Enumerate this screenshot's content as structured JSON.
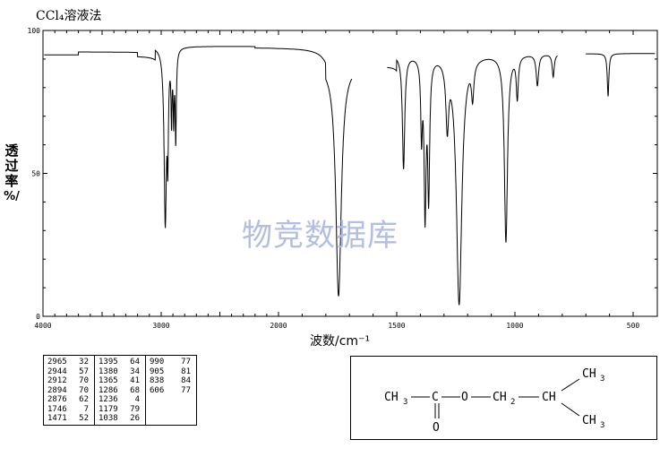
{
  "page": {
    "title": "CCl₄溶液法",
    "ylabel": "透\n过\n率\n%/",
    "xlabel": "波数/cm⁻¹",
    "watermark": "物竞数据库"
  },
  "chart_data": {
    "type": "line",
    "title": "CCl₄溶液法",
    "xlabel": "波数/cm⁻¹",
    "ylabel": "透过率%/",
    "xlim": [
      4000,
      400
    ],
    "ylim": [
      0,
      100
    ],
    "x_ticks": [
      4000,
      3000,
      2000,
      1500,
      1000,
      500
    ],
    "y_ticks": [
      0,
      50,
      100
    ],
    "peaks": [
      {
        "x": 2965,
        "y": 32
      },
      {
        "x": 2944,
        "y": 57
      },
      {
        "x": 2912,
        "y": 70
      },
      {
        "x": 2894,
        "y": 70
      },
      {
        "x": 2876,
        "y": 62
      },
      {
        "x": 1746,
        "y": 7
      },
      {
        "x": 1471,
        "y": 52
      },
      {
        "x": 1395,
        "y": 64
      },
      {
        "x": 1380,
        "y": 34
      },
      {
        "x": 1365,
        "y": 41
      },
      {
        "x": 1286,
        "y": 68
      },
      {
        "x": 1236,
        "y": 4
      },
      {
        "x": 1179,
        "y": 79
      },
      {
        "x": 1038,
        "y": 26
      },
      {
        "x": 990,
        "y": 77
      },
      {
        "x": 905,
        "y": 81
      },
      {
        "x": 838,
        "y": 84
      },
      {
        "x": 606,
        "y": 77
      }
    ]
  },
  "table": {
    "columns": [
      [
        [
          "2965",
          "32"
        ],
        [
          "2944",
          "57"
        ],
        [
          "2912",
          "70"
        ],
        [
          "2894",
          "70"
        ],
        [
          "2876",
          "62"
        ],
        [
          "1746",
          "7"
        ],
        [
          "1471",
          "52"
        ]
      ],
      [
        [
          "1395",
          "64"
        ],
        [
          "1380",
          "34"
        ],
        [
          "1365",
          "41"
        ],
        [
          "1286",
          "68"
        ],
        [
          "1236",
          "4"
        ],
        [
          "1179",
          "79"
        ],
        [
          "1038",
          "26"
        ]
      ],
      [
        [
          "990",
          "77"
        ],
        [
          "905",
          "81"
        ],
        [
          "838",
          "84"
        ],
        [
          "606",
          "77"
        ]
      ]
    ]
  },
  "structure": {
    "ch3_left": "CH",
    "sub3": "3",
    "c": "C",
    "o_ester": "O",
    "ch2": "CH",
    "sub2": "2",
    "ch": "CH",
    "ch3_top": "CH",
    "ch3_bottom": "CH",
    "o_carbonyl": "O"
  }
}
